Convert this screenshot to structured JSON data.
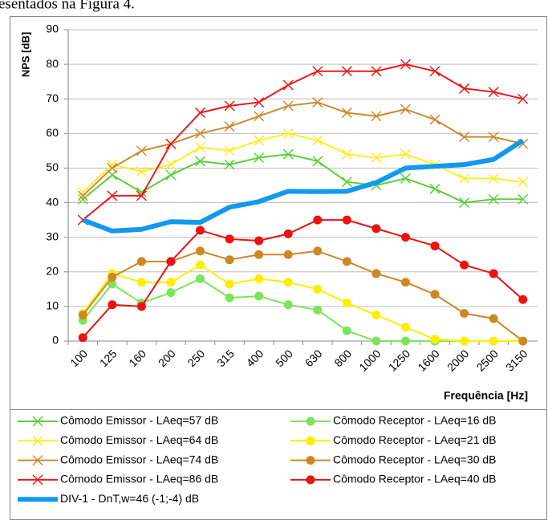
{
  "header_text": "esentados na Figura 4.",
  "chart_data": {
    "type": "line",
    "y_label": "NPS [dB]",
    "x_label": "Frequência [Hz]",
    "categories": [
      "100",
      "125",
      "160",
      "200",
      "250",
      "315",
      "400",
      "500",
      "630",
      "800",
      "1000",
      "1250",
      "1600",
      "2000",
      "2500",
      "3150"
    ],
    "ylim": [
      0,
      90
    ],
    "yticks": [
      0,
      10,
      20,
      30,
      40,
      50,
      60,
      70,
      80,
      90
    ],
    "grid": true,
    "series": [
      {
        "name": "Cômodo Emissor - LAeq=57 dB",
        "color": "#5ccf3a",
        "marker": "x",
        "values": [
          41,
          48,
          43,
          48,
          52,
          51,
          53,
          54,
          52,
          46,
          45,
          47,
          44,
          40,
          41,
          41
        ]
      },
      {
        "name": "Cômodo Receptor - LAeq=16 dB",
        "color": "#7fe35a",
        "marker": "o",
        "values": [
          6,
          16.5,
          11,
          14,
          18,
          12.5,
          13,
          10.5,
          9,
          3,
          0,
          0,
          0,
          0,
          0,
          0
        ]
      },
      {
        "name": "Cômodo Emissor - LAeq=64 dB",
        "color": "#ffee22",
        "marker": "x",
        "values": [
          43,
          51,
          49,
          51,
          56,
          55,
          58,
          60,
          58,
          54,
          53,
          54,
          51,
          47,
          47,
          46
        ]
      },
      {
        "name": "Cômodo Receptor - LAeq=21 dB",
        "color": "#ffee00",
        "marker": "o",
        "values": [
          8,
          19.5,
          17,
          17,
          22,
          16.5,
          18,
          17,
          15,
          11,
          7.5,
          4,
          0.5,
          0,
          0,
          0
        ]
      },
      {
        "name": "Cômodo Emissor - LAeq=74 dB",
        "color": "#cc8a2e",
        "marker": "x",
        "values": [
          42,
          50,
          55,
          57,
          60,
          62,
          65,
          68,
          69,
          66,
          65,
          67,
          64,
          59,
          59,
          57
        ]
      },
      {
        "name": "Cômodo Receptor - LAeq=30 dB",
        "color": "#cc8822",
        "marker": "o",
        "values": [
          7.5,
          18.5,
          23,
          23,
          26,
          23.5,
          25,
          25,
          26,
          23,
          19.5,
          17,
          13.5,
          8,
          6.5,
          0
        ]
      },
      {
        "name": "Cômodo Emissor - LAeq=86 dB",
        "color": "#ee1a1a",
        "marker": "x",
        "values": [
          35,
          42,
          42,
          57,
          66,
          68,
          69,
          74,
          78,
          78,
          78,
          80,
          78,
          73,
          72,
          70
        ]
      },
      {
        "name": "Cômodo Receptor - LAeq=40 dB",
        "color": "#ee1111",
        "marker": "o",
        "values": [
          1,
          10.5,
          10,
          23,
          32,
          29.5,
          29,
          31,
          35,
          35,
          32.5,
          30,
          27.5,
          22,
          19.5,
          12
        ]
      },
      {
        "name": "DIV-1 - DnT,w=46 (-1;-4) dB",
        "color": "#1199ee",
        "marker": "none",
        "line_width": 6,
        "values": [
          35,
          31.8,
          32.3,
          34.5,
          34.3,
          38.7,
          40.3,
          43.3,
          43.2,
          43.3,
          45.8,
          50,
          50.5,
          51,
          52.5,
          58
        ]
      }
    ]
  }
}
